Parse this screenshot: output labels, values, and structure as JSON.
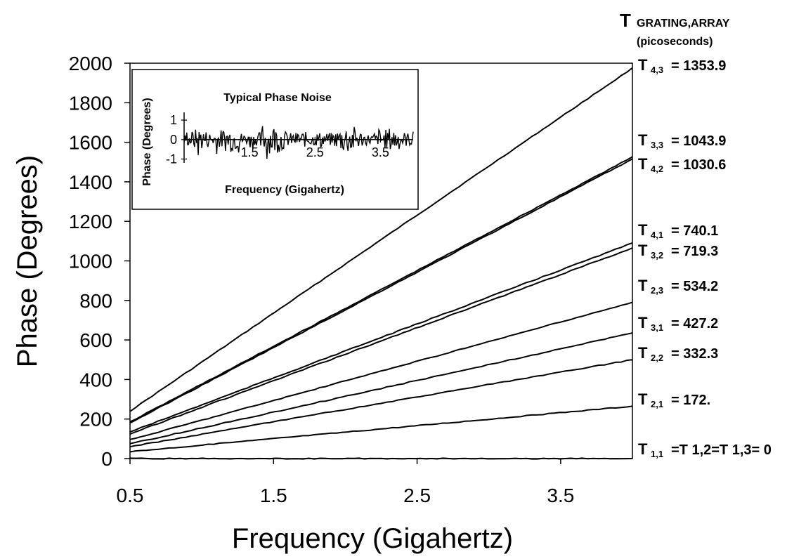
{
  "chart_data": {
    "type": "line",
    "xlabel": "Frequency (Gigahertz)",
    "ylabel": "Phase (Degrees)",
    "xlim": [
      0.5,
      4.0
    ],
    "ylim": [
      0,
      2000
    ],
    "xticks": [
      "0.5",
      "1.5",
      "2.5",
      "3.5"
    ],
    "yticks": [
      "0",
      "200",
      "400",
      "600",
      "800",
      "1000",
      "1200",
      "1400",
      "1600",
      "1800",
      "2000"
    ],
    "grid": false,
    "legend_header": {
      "main": "T",
      "sub": "GRATING,ARRAY",
      "unit": "(picoseconds)"
    },
    "series": [
      {
        "name_main": "T",
        "name_sub": "4,3",
        "value_text": "= 1353.9",
        "x": [
          0.5,
          4.0
        ],
        "y": [
          240,
          1975
        ]
      },
      {
        "name_main": "T",
        "name_sub": "3,3",
        "value_text": "= 1043.9",
        "x": [
          0.5,
          4.0
        ],
        "y": [
          185,
          1525
        ]
      },
      {
        "name_main": "T",
        "name_sub": "4,2",
        "value_text": "= 1030.6",
        "x": [
          0.5,
          4.0
        ],
        "y": [
          180,
          1515
        ]
      },
      {
        "name_main": "T",
        "name_sub": "4,1",
        "value_text": "= 740.1",
        "x": [
          0.5,
          4.0
        ],
        "y": [
          135,
          1090
        ]
      },
      {
        "name_main": "T",
        "name_sub": "3,2",
        "value_text": "= 719.3",
        "x": [
          0.5,
          4.0
        ],
        "y": [
          125,
          1065
        ]
      },
      {
        "name_main": "T",
        "name_sub": "2,3",
        "value_text": "= 534.2",
        "x": [
          0.5,
          4.0
        ],
        "y": [
          95,
          790
        ]
      },
      {
        "name_main": "T",
        "name_sub": "3,1",
        "value_text": "= 427.2",
        "x": [
          0.5,
          4.0
        ],
        "y": [
          75,
          635
        ]
      },
      {
        "name_main": "T",
        "name_sub": "2,2",
        "value_text": "= 332.3",
        "x": [
          0.5,
          4.0
        ],
        "y": [
          60,
          500
        ]
      },
      {
        "name_main": "T",
        "name_sub": "2,1",
        "value_text": "= 172.",
        "x": [
          0.5,
          4.0
        ],
        "y": [
          35,
          265
        ]
      },
      {
        "name_main": "T",
        "name_sub": "1,1",
        "value_text": "=T 1,2=T 1,3= 0",
        "x": [
          0.5,
          4.0
        ],
        "y": [
          0,
          0
        ]
      }
    ],
    "inset": {
      "title": "Typical Phase Noise",
      "xlabel": "Frequency (Gigahertz)",
      "ylabel": "Phase (Degrees)",
      "xlim": [
        0.5,
        4.0
      ],
      "ylim": [
        -1.2,
        1.4
      ],
      "xticks": [
        "1.5",
        "2.5",
        "3.5"
      ],
      "yticks": [
        "1",
        "0",
        "-1"
      ]
    }
  }
}
